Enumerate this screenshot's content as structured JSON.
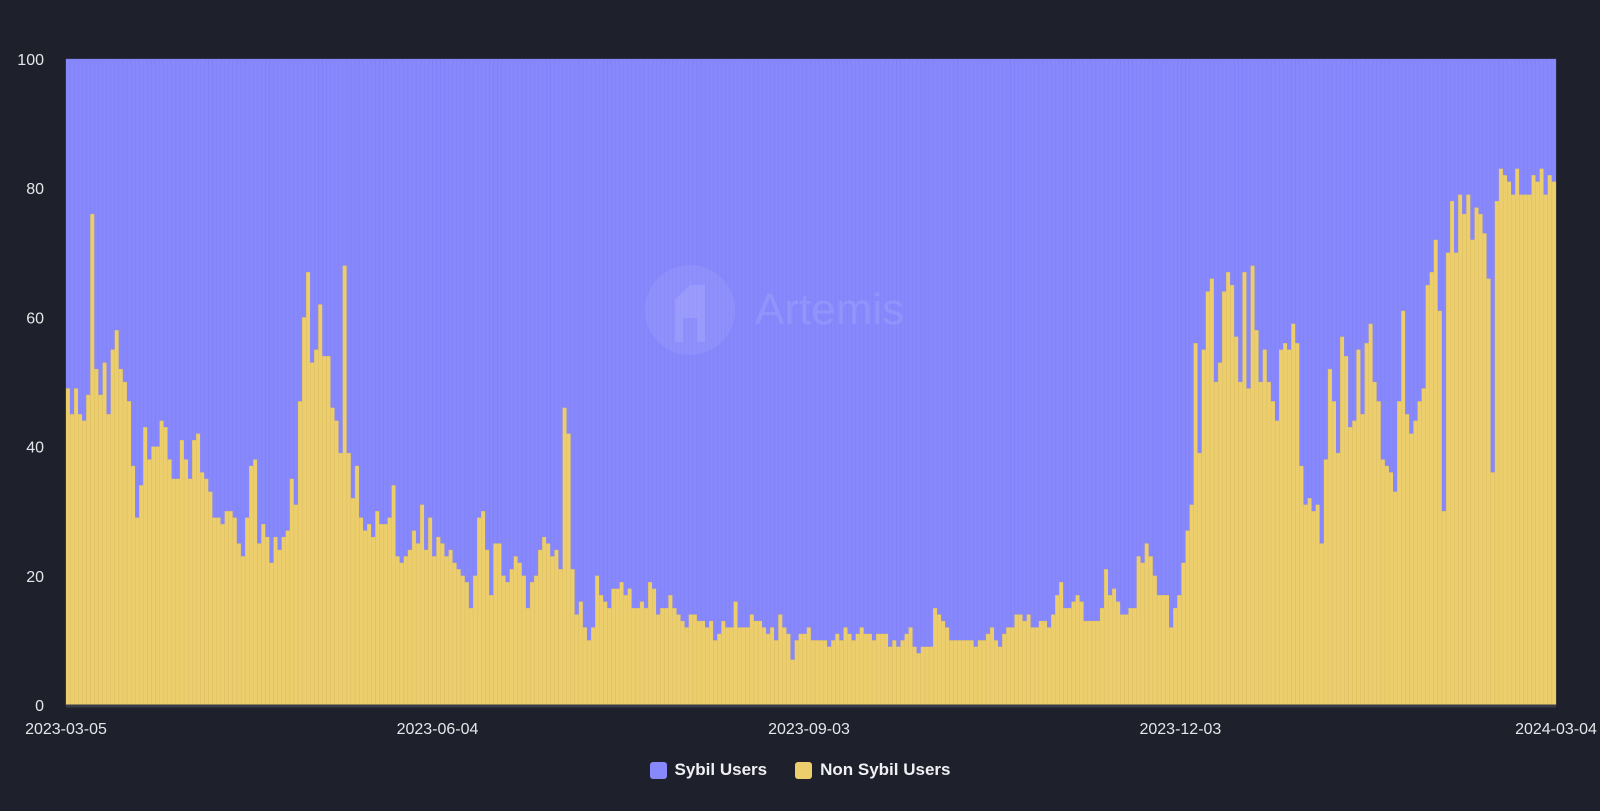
{
  "watermark": "Artemis",
  "colors": {
    "background": "#1e202b",
    "sybil": "#8888fd",
    "non_sybil": "#ecce6c"
  },
  "legend": [
    {
      "label": "Sybil Users",
      "color": "#8888fd"
    },
    {
      "label": "Non Sybil Users",
      "color": "#ecce6c"
    }
  ],
  "chart_data": {
    "type": "bar",
    "stacked": true,
    "percent_stacked": true,
    "title": "",
    "xlabel": "",
    "ylabel": "",
    "ylim": [
      0,
      100
    ],
    "y_ticks": [
      0,
      20,
      40,
      60,
      80,
      100
    ],
    "x_start": "2023-03-05",
    "x_end": "2024-03-04",
    "x_ticks": [
      "2023-03-05",
      "2023-06-04",
      "2023-09-03",
      "2023-12-03",
      "2024-03-04"
    ],
    "legend_position": "bottom-center",
    "series": [
      {
        "name": "Non Sybil Users",
        "values": [
          49,
          45,
          49,
          45,
          44,
          48,
          76,
          52,
          48,
          53,
          45,
          55,
          58,
          52,
          50,
          47,
          37,
          29,
          34,
          43,
          38,
          40,
          40,
          44,
          43,
          38,
          35,
          35,
          41,
          38,
          35,
          41,
          42,
          36,
          35,
          33,
          29,
          29,
          28,
          30,
          30,
          29,
          25,
          23,
          29,
          37,
          38,
          25,
          28,
          26,
          22,
          26,
          24,
          26,
          27,
          35,
          31,
          47,
          60,
          67,
          53,
          55,
          62,
          54,
          54,
          46,
          44,
          39,
          68,
          39,
          32,
          37,
          29,
          27,
          28,
          26,
          30,
          28,
          28,
          29,
          34,
          23,
          22,
          23,
          24,
          27,
          25,
          31,
          24,
          29,
          23,
          26,
          25,
          23,
          24,
          22,
          21,
          20,
          19,
          15,
          20,
          29,
          30,
          24,
          17,
          25,
          25,
          20,
          19,
          21,
          23,
          22,
          20,
          15,
          19,
          20,
          24,
          26,
          25,
          23,
          24,
          21,
          46,
          42,
          21,
          14,
          16,
          12,
          10,
          12,
          20,
          17,
          16,
          15,
          18,
          18,
          19,
          17,
          18,
          15,
          15,
          16,
          15,
          19,
          18,
          14,
          15,
          15,
          17,
          15,
          14,
          13,
          12,
          14,
          14,
          13,
          13,
          12,
          13,
          10,
          11,
          13,
          12,
          12,
          16,
          12,
          12,
          12,
          14,
          13,
          13,
          12,
          11,
          12,
          10,
          14,
          12,
          11,
          7,
          10,
          11,
          11,
          12,
          10,
          10,
          10,
          10,
          9,
          10,
          11,
          10,
          12,
          11,
          10,
          11,
          12,
          11,
          11,
          10,
          11,
          11,
          11,
          9,
          10,
          9,
          10,
          11,
          12,
          9,
          8,
          9,
          9,
          9,
          15,
          14,
          13,
          12,
          10,
          10,
          10,
          10,
          10,
          10,
          9,
          10,
          10,
          11,
          12,
          10,
          9,
          11,
          12,
          12,
          14,
          14,
          13,
          14,
          12,
          12,
          13,
          13,
          12,
          14,
          17,
          19,
          15,
          15,
          16,
          17,
          16,
          13,
          13,
          13,
          13,
          15,
          21,
          17,
          18,
          16,
          14,
          14,
          15,
          15,
          23,
          22,
          25,
          23,
          20,
          17,
          17,
          17,
          12,
          15,
          17,
          22,
          27,
          31,
          56,
          39,
          55,
          64,
          66,
          50,
          53,
          64,
          67,
          65,
          57,
          50,
          67,
          49,
          68,
          58,
          50,
          55,
          50,
          47,
          44,
          55,
          56,
          55,
          59,
          56,
          37,
          31,
          32,
          30,
          31,
          25,
          38,
          52,
          47,
          39,
          57,
          54,
          43,
          44,
          55,
          45,
          56,
          59,
          50,
          47,
          38,
          37,
          36,
          33,
          47,
          61,
          45,
          42,
          44,
          47,
          49,
          65,
          67,
          72,
          61,
          30,
          70,
          78,
          70,
          79,
          76,
          79,
          72,
          77,
          76,
          73,
          66,
          36,
          78,
          83,
          82,
          81,
          79,
          83,
          79,
          79,
          79,
          82,
          81,
          83,
          79,
          82,
          81
        ]
      },
      {
        "name": "Sybil Users",
        "values": "complement to 100"
      }
    ]
  }
}
